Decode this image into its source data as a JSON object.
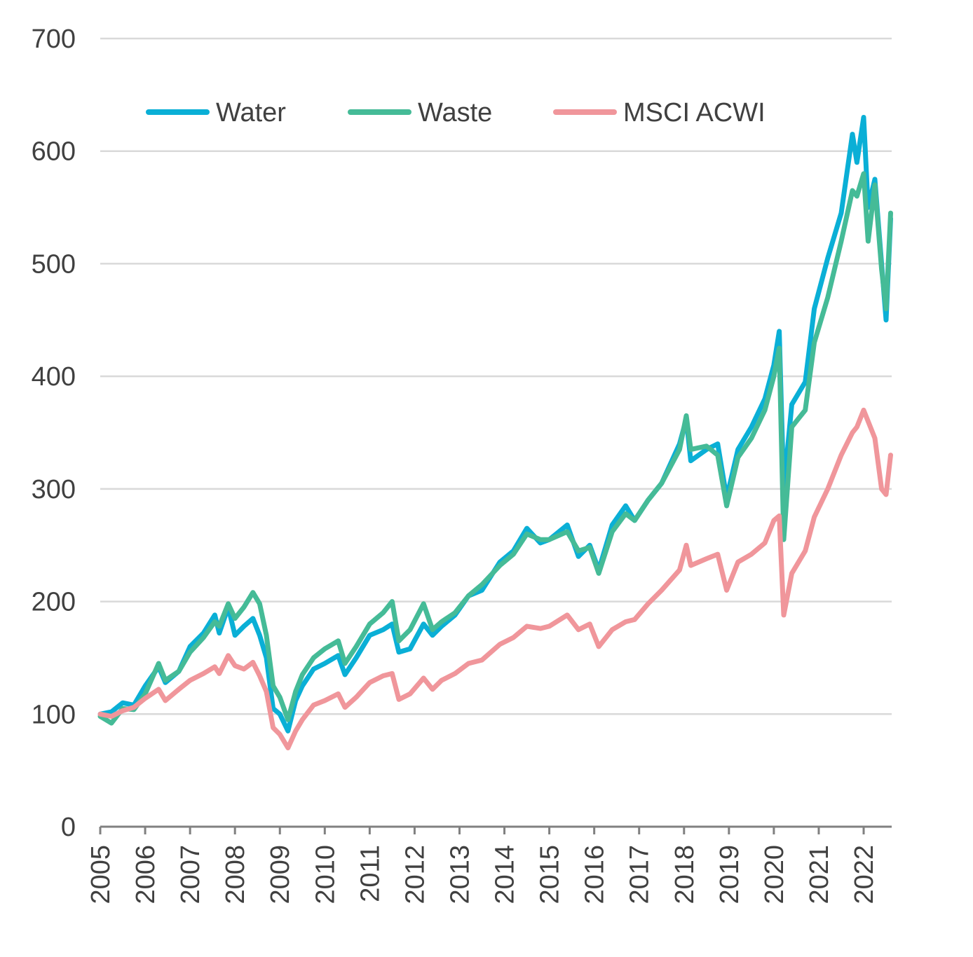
{
  "chart_data": {
    "type": "line",
    "title": "",
    "xlabel": "",
    "ylabel": "",
    "ylim": [
      0,
      700
    ],
    "xlim": [
      2005,
      2022.6
    ],
    "yticks": [
      0,
      100,
      200,
      300,
      400,
      500,
      600,
      700
    ],
    "xticks": [
      "2005",
      "2006",
      "2007",
      "2008",
      "2009",
      "2010",
      "2011",
      "2012",
      "2013",
      "2014",
      "2015",
      "2016",
      "2017",
      "2018",
      "2019",
      "2020",
      "2021",
      "2022"
    ],
    "grid": "horizontal",
    "legend_position": "top-left",
    "series": [
      {
        "name": "Water",
        "color": "#0AAFD6",
        "x": [
          2005.0,
          2005.25,
          2005.5,
          2005.75,
          2006.0,
          2006.3,
          2006.45,
          2006.75,
          2007.0,
          2007.3,
          2007.55,
          2007.65,
          2007.85,
          2008.0,
          2008.2,
          2008.4,
          2008.55,
          2008.7,
          2008.85,
          2009.0,
          2009.18,
          2009.35,
          2009.5,
          2009.75,
          2010.0,
          2010.3,
          2010.45,
          2010.7,
          2011.0,
          2011.3,
          2011.5,
          2011.65,
          2011.9,
          2012.2,
          2012.4,
          2012.6,
          2012.9,
          2013.2,
          2013.5,
          2013.9,
          2014.2,
          2014.5,
          2014.8,
          2015.0,
          2015.4,
          2015.65,
          2015.9,
          2016.1,
          2016.4,
          2016.7,
          2016.9,
          2017.2,
          2017.5,
          2017.9,
          2018.05,
          2018.15,
          2018.5,
          2018.75,
          2018.95,
          2019.2,
          2019.5,
          2019.8,
          2020.0,
          2020.12,
          2020.22,
          2020.4,
          2020.7,
          2020.9,
          2021.2,
          2021.5,
          2021.75,
          2021.85,
          2022.0,
          2022.1,
          2022.25,
          2022.4,
          2022.5,
          2022.6
        ],
        "values": [
          100,
          102,
          110,
          108,
          125,
          142,
          128,
          138,
          160,
          172,
          188,
          172,
          195,
          170,
          178,
          185,
          170,
          150,
          105,
          100,
          85,
          112,
          125,
          140,
          145,
          152,
          135,
          150,
          170,
          175,
          180,
          155,
          158,
          180,
          170,
          178,
          188,
          205,
          210,
          235,
          245,
          265,
          252,
          255,
          268,
          240,
          250,
          228,
          268,
          285,
          272,
          290,
          305,
          340,
          362,
          325,
          335,
          340,
          292,
          335,
          355,
          380,
          410,
          440,
          300,
          375,
          395,
          460,
          505,
          545,
          615,
          590,
          630,
          550,
          575,
          500,
          450,
          540
        ]
      },
      {
        "name": "Waste",
        "color": "#45BB97",
        "x": [
          2005.0,
          2005.25,
          2005.5,
          2005.75,
          2006.0,
          2006.3,
          2006.45,
          2006.75,
          2007.0,
          2007.3,
          2007.55,
          2007.65,
          2007.85,
          2008.0,
          2008.2,
          2008.4,
          2008.55,
          2008.7,
          2008.85,
          2009.0,
          2009.18,
          2009.35,
          2009.5,
          2009.75,
          2010.0,
          2010.3,
          2010.45,
          2010.7,
          2011.0,
          2011.3,
          2011.5,
          2011.65,
          2011.9,
          2012.2,
          2012.4,
          2012.6,
          2012.9,
          2013.2,
          2013.5,
          2013.9,
          2014.2,
          2014.5,
          2014.8,
          2015.0,
          2015.4,
          2015.65,
          2015.9,
          2016.1,
          2016.4,
          2016.7,
          2016.9,
          2017.2,
          2017.5,
          2017.9,
          2018.05,
          2018.15,
          2018.5,
          2018.75,
          2018.95,
          2019.2,
          2019.5,
          2019.8,
          2020.0,
          2020.12,
          2020.22,
          2020.4,
          2020.7,
          2020.9,
          2021.2,
          2021.5,
          2021.75,
          2021.85,
          2022.0,
          2022.1,
          2022.25,
          2022.4,
          2022.5,
          2022.6
        ],
        "values": [
          98,
          92,
          105,
          104,
          118,
          145,
          130,
          138,
          155,
          168,
          182,
          178,
          198,
          185,
          195,
          208,
          198,
          170,
          125,
          115,
          95,
          120,
          135,
          150,
          158,
          165,
          145,
          160,
          180,
          190,
          200,
          165,
          175,
          198,
          175,
          182,
          190,
          205,
          215,
          232,
          242,
          260,
          255,
          255,
          262,
          245,
          248,
          225,
          262,
          278,
          272,
          290,
          305,
          335,
          365,
          335,
          338,
          330,
          285,
          328,
          345,
          370,
          400,
          425,
          255,
          355,
          370,
          430,
          470,
          520,
          565,
          560,
          580,
          520,
          570,
          495,
          460,
          545
        ]
      },
      {
        "name": "MSCI ACWI",
        "color": "#F0969B",
        "x": [
          2005.0,
          2005.25,
          2005.5,
          2005.75,
          2006.0,
          2006.3,
          2006.45,
          2006.75,
          2007.0,
          2007.3,
          2007.55,
          2007.65,
          2007.85,
          2008.0,
          2008.2,
          2008.4,
          2008.55,
          2008.7,
          2008.85,
          2009.0,
          2009.18,
          2009.35,
          2009.5,
          2009.75,
          2010.0,
          2010.3,
          2010.45,
          2010.7,
          2011.0,
          2011.3,
          2011.5,
          2011.65,
          2011.9,
          2012.2,
          2012.4,
          2012.6,
          2012.9,
          2013.2,
          2013.5,
          2013.9,
          2014.2,
          2014.5,
          2014.8,
          2015.0,
          2015.4,
          2015.65,
          2015.9,
          2016.1,
          2016.4,
          2016.7,
          2016.9,
          2017.2,
          2017.5,
          2017.9,
          2018.05,
          2018.15,
          2018.5,
          2018.75,
          2018.95,
          2019.2,
          2019.5,
          2019.8,
          2020.0,
          2020.12,
          2020.22,
          2020.4,
          2020.7,
          2020.9,
          2021.2,
          2021.5,
          2021.75,
          2021.85,
          2022.0,
          2022.1,
          2022.25,
          2022.4,
          2022.5,
          2022.6
        ],
        "values": [
          100,
          98,
          103,
          106,
          114,
          122,
          112,
          122,
          130,
          136,
          142,
          136,
          152,
          143,
          140,
          146,
          134,
          120,
          88,
          82,
          70,
          85,
          95,
          108,
          112,
          118,
          106,
          115,
          128,
          134,
          136,
          113,
          118,
          132,
          122,
          130,
          136,
          145,
          148,
          162,
          168,
          178,
          176,
          178,
          188,
          175,
          180,
          160,
          175,
          182,
          184,
          198,
          210,
          228,
          250,
          232,
          238,
          242,
          210,
          235,
          242,
          252,
          272,
          276,
          188,
          225,
          245,
          275,
          300,
          330,
          350,
          355,
          370,
          360,
          345,
          300,
          295,
          330
        ]
      }
    ]
  }
}
